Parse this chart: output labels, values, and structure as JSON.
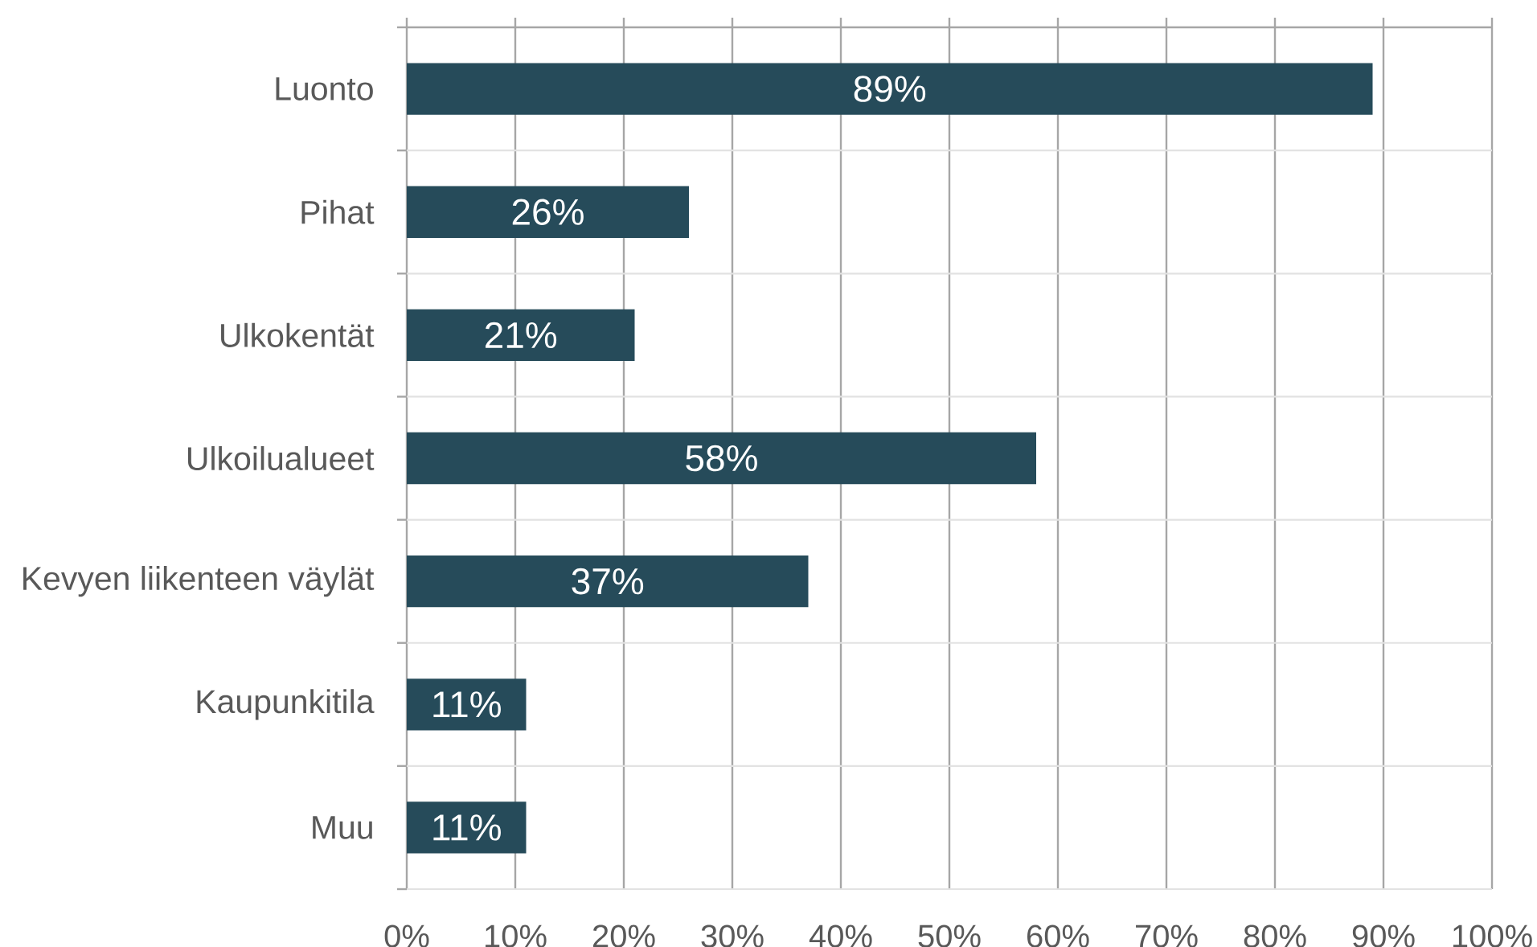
{
  "chart_data": {
    "type": "bar",
    "orientation": "horizontal",
    "categories": [
      "Luonto",
      "Pihat",
      "Ulkokentät",
      "Ulkoilualueet",
      "Kevyen liikenteen väylät",
      "Kaupunkitila",
      "Muu"
    ],
    "values": [
      89,
      26,
      21,
      58,
      37,
      11,
      11
    ],
    "value_labels": [
      "89%",
      "26%",
      "21%",
      "58%",
      "37%",
      "11%",
      "11%"
    ],
    "color": "#264b5a",
    "xlim": [
      0,
      100
    ],
    "xticks": [
      {
        "value": 0,
        "label": "0%"
      },
      {
        "value": 10,
        "label": "10%"
      },
      {
        "value": 20,
        "label": "20%"
      },
      {
        "value": 30,
        "label": "30%"
      },
      {
        "value": 40,
        "label": "40%"
      },
      {
        "value": 50,
        "label": "50%"
      },
      {
        "value": 60,
        "label": "60%"
      },
      {
        "value": 70,
        "label": "70%"
      },
      {
        "value": 80,
        "label": "80%"
      },
      {
        "value": 90,
        "label": "90%"
      },
      {
        "value": 100,
        "label": "100%"
      }
    ],
    "grid": true
  }
}
